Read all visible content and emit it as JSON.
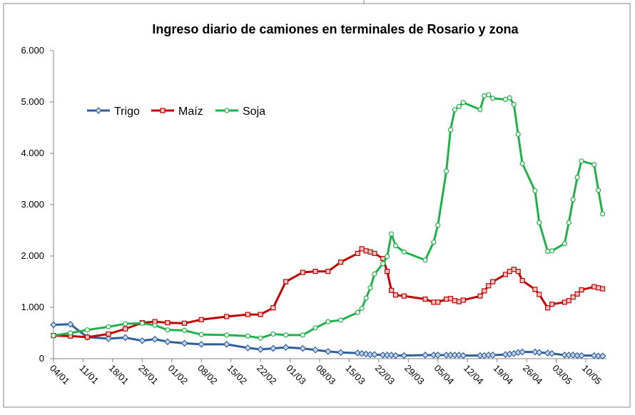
{
  "chart_data": {
    "type": "line",
    "title": "Ingreso diario de camiones en terminales de Rosario y zona",
    "x": [
      "04/01",
      "08/01",
      "12/01",
      "17/01",
      "21/01",
      "25/01",
      "28/01",
      "31/01",
      "04/02",
      "08/02",
      "14/02",
      "19/02",
      "22/02",
      "25/02",
      "28/02",
      "04/03",
      "07/03",
      "10/03",
      "13/03",
      "17/03",
      "18/03",
      "19/03",
      "20/03",
      "21/03",
      "23/03",
      "24/03",
      "25/03",
      "26/03",
      "28/03",
      "02/04",
      "04/04",
      "05/04",
      "07/04",
      "08/04",
      "09/04",
      "10/04",
      "11/04",
      "15/04",
      "16/04",
      "17/04",
      "18/04",
      "21/04",
      "22/04",
      "23/04",
      "24/04",
      "25/04",
      "28/04",
      "29/04",
      "01/05",
      "02/05",
      "05/05",
      "06/05",
      "07/05",
      "08/05",
      "09/05",
      "12/05",
      "13/05",
      "14/05"
    ],
    "series": [
      {
        "name": "Trigo",
        "color": "#2e5e9e",
        "marker": "diamond",
        "values": [
          660,
          670,
          420,
          390,
          410,
          350,
          380,
          330,
          300,
          280,
          280,
          210,
          180,
          200,
          220,
          200,
          170,
          140,
          120,
          110,
          100,
          90,
          80,
          80,
          70,
          70,
          70,
          60,
          60,
          70,
          70,
          70,
          70,
          70,
          70,
          70,
          60,
          60,
          60,
          70,
          70,
          80,
          90,
          100,
          120,
          130,
          130,
          120,
          110,
          100,
          70,
          70,
          70,
          60,
          60,
          60,
          50,
          50
        ]
      },
      {
        "name": "Maíz",
        "color": "#c00000",
        "marker": "square",
        "values": [
          450,
          440,
          420,
          480,
          580,
          700,
          720,
          700,
          690,
          760,
          820,
          860,
          860,
          990,
          1500,
          1680,
          1700,
          1700,
          1880,
          2050,
          2140,
          2100,
          2080,
          2050,
          1950,
          1700,
          1330,
          1240,
          1220,
          1160,
          1100,
          1100,
          1160,
          1170,
          1130,
          1110,
          1140,
          1220,
          1320,
          1420,
          1500,
          1640,
          1700,
          1740,
          1700,
          1520,
          1350,
          1250,
          990,
          1060,
          1100,
          1130,
          1200,
          1260,
          1340,
          1400,
          1380,
          1360
        ]
      },
      {
        "name": "Soja",
        "color": "#22b04a",
        "marker": "circle",
        "values": [
          450,
          500,
          560,
          620,
          680,
          690,
          650,
          560,
          550,
          470,
          460,
          440,
          400,
          480,
          460,
          460,
          600,
          720,
          750,
          900,
          980,
          1180,
          1380,
          1650,
          1850,
          1990,
          2430,
          2200,
          2080,
          1920,
          2270,
          2600,
          3650,
          4460,
          4850,
          4910,
          4990,
          4850,
          5120,
          5140,
          5070,
          5050,
          5080,
          4950,
          4370,
          3800,
          3270,
          2650,
          2090,
          2100,
          2240,
          2650,
          3100,
          3530,
          3850,
          3780,
          3280,
          2820
        ]
      }
    ],
    "ylim": [
      0,
      6000
    ],
    "yticks": [
      0,
      {
        "value": 1000,
        "label": "1.000"
      },
      {
        "value": 2000,
        "label": "2.000"
      },
      {
        "value": 3000,
        "label": "3.000"
      },
      {
        "value": 4000,
        "label": "4.000"
      },
      {
        "value": 5000,
        "label": "5.000"
      },
      {
        "value": 6000,
        "label": "6.000"
      }
    ],
    "xticks": [
      "04/01",
      "11/01",
      "18/01",
      "25/01",
      "01/02",
      "08/02",
      "15/02",
      "22/02",
      "01/03",
      "08/03",
      "15/03",
      "22/03",
      "29/03",
      "05/04",
      "12/04",
      "19/04",
      "26/04",
      "03/05",
      "10/05"
    ],
    "legend": "top-left"
  }
}
